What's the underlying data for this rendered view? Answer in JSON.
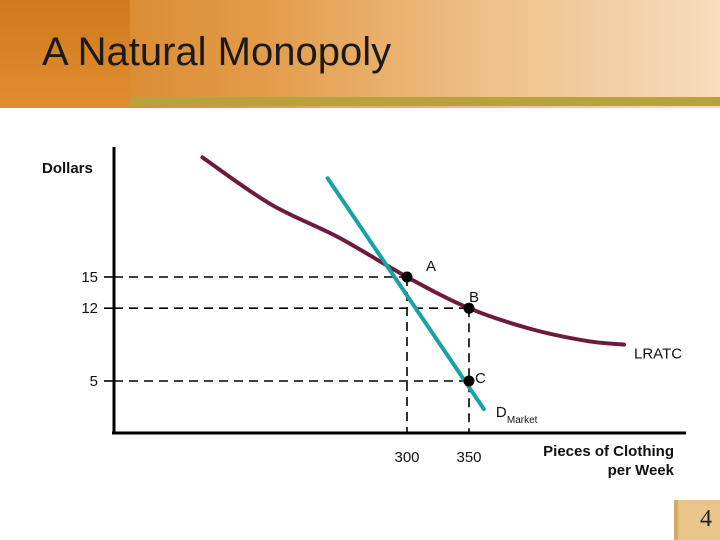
{
  "slide": {
    "title": "A Natural Monopoly",
    "page_number": "4"
  },
  "colors": {
    "lratc_curve": "#6d1a3c",
    "demand_line": "#18a2a2",
    "title_gradient": [
      "#d27f22",
      "#f6ddbd"
    ],
    "title_rule": "#b8a23e"
  },
  "chart_data": {
    "type": "line",
    "title": "",
    "ylabel": "Dollars",
    "xlabel": "Pieces of Clothing per Week",
    "xlabel_lines": [
      "Pieces of Clothing",
      "per Week"
    ],
    "y_ticks": [
      15,
      12,
      5
    ],
    "x_ticks": [
      300,
      350
    ],
    "xlim": [
      0,
      620
    ],
    "ylim": [
      0,
      28
    ],
    "grid": false,
    "series": [
      {
        "name": "LRATC",
        "label": "LRATC",
        "points": [
          [
            135,
            26.5
          ],
          [
            190,
            22.0
          ],
          [
            245,
            18.8
          ],
          [
            300,
            15
          ],
          [
            350,
            12
          ],
          [
            400,
            10.0
          ],
          [
            445,
            8.85
          ],
          [
            475,
            8.5
          ]
        ]
      },
      {
        "name": "DMarket",
        "label": "D",
        "label_subscript": "Market",
        "points": [
          [
            236,
            24.5
          ],
          [
            300,
            15
          ],
          [
            350,
            5
          ],
          [
            362,
            2.3
          ]
        ]
      }
    ],
    "points": [
      {
        "label": "A",
        "x": 300,
        "y": 15
      },
      {
        "label": "B",
        "x": 350,
        "y": 12
      },
      {
        "label": "C",
        "x": 350,
        "y": 5
      }
    ]
  }
}
